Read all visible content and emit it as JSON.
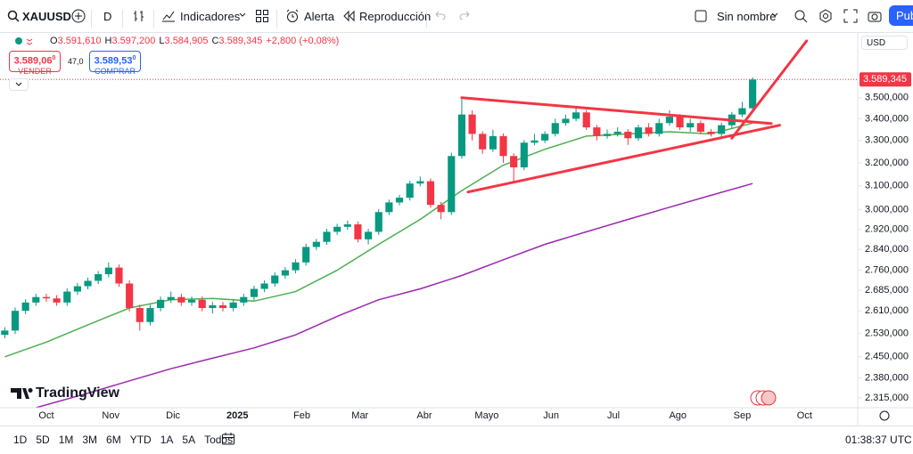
{
  "toolbar": {
    "symbol": "XAUUSD",
    "interval": "D",
    "indicators": "Indicadores",
    "alert": "Alerta",
    "replay": "Reproducción",
    "layout": "Sin nombre",
    "publish": "Pub"
  },
  "legend": {
    "items": [
      {
        "key": "O",
        "value": "3.591,610"
      },
      {
        "key": "H",
        "value": "3.597,200"
      },
      {
        "key": "L",
        "value": "3.584,905"
      },
      {
        "key": "C",
        "value": "3.589,345"
      }
    ],
    "change": "+2,800 (+0,08%)"
  },
  "sell": {
    "price": "3.589,06",
    "sup": "0",
    "label": "VENDER"
  },
  "spread": "47,0",
  "buy": {
    "price": "3.589,53",
    "sup": "0",
    "label": "COMPRAR"
  },
  "currency": "USD",
  "watermark": "TradingView",
  "ranges": [
    "1D",
    "5D",
    "1M",
    "3M",
    "6M",
    "YTD",
    "1A",
    "5A",
    "Todos"
  ],
  "clock": "01:38:37 UTC",
  "chart_data": {
    "type": "candlestick",
    "log_scale": true,
    "grid": false,
    "up_color": "#089981",
    "down_color": "#f23645",
    "x": [
      -20,
      -15,
      -10,
      -5,
      0,
      5,
      10,
      15,
      20,
      25,
      30,
      35,
      40,
      45,
      50,
      55,
      60,
      65,
      70,
      75,
      80,
      85,
      90,
      95,
      100,
      105,
      110,
      115,
      120,
      125,
      130,
      135,
      140,
      145,
      150,
      155,
      160,
      165,
      170,
      175,
      180,
      185,
      190,
      195,
      200,
      205,
      210,
      215,
      220,
      225,
      230,
      235,
      240,
      245,
      250,
      255,
      260,
      265,
      270,
      275,
      280,
      285,
      290,
      295,
      300,
      305,
      310,
      315,
      320,
      325,
      330,
      335,
      340
    ],
    "open": [
      2525,
      2540,
      2610,
      2640,
      2660,
      2655,
      2640,
      2680,
      2700,
      2720,
      2745,
      2770,
      2710,
      2620,
      2570,
      2620,
      2650,
      2660,
      2640,
      2650,
      2620,
      2630,
      2620,
      2640,
      2660,
      2690,
      2710,
      2740,
      2760,
      2790,
      2850,
      2870,
      2910,
      2930,
      2940,
      2880,
      2910,
      2990,
      3030,
      3050,
      3110,
      3120,
      3020,
      2990,
      3230,
      3420,
      3330,
      3260,
      3320,
      3230,
      3180,
      3290,
      3300,
      3330,
      3380,
      3400,
      3430,
      3360,
      3320,
      3330,
      3340,
      3310,
      3360,
      3330,
      3380,
      3410,
      3360,
      3380,
      3340,
      3330,
      3370,
      3420,
      3450
    ],
    "high": [
      2552,
      2622,
      2652,
      2672,
      2672,
      2667,
      2692,
      2712,
      2732,
      2757,
      2790,
      2782,
      2722,
      2632,
      2632,
      2662,
      2680,
      2672,
      2662,
      2662,
      2642,
      2642,
      2652,
      2672,
      2702,
      2722,
      2752,
      2772,
      2802,
      2862,
      2882,
      2922,
      2942,
      2955,
      2952,
      2922,
      3002,
      3042,
      3062,
      3122,
      3140,
      3132,
      3032,
      3245,
      3500,
      3440,
      3342,
      3350,
      3332,
      3242,
      3302,
      3330,
      3342,
      3400,
      3420,
      3452,
      3442,
      3372,
      3350,
      3360,
      3352,
      3372,
      3380,
      3400,
      3440,
      3422,
      3400,
      3392,
      3352,
      3382,
      3432,
      3480,
      3600
    ],
    "low": [
      2513,
      2528,
      2598,
      2628,
      2643,
      2628,
      2628,
      2668,
      2688,
      2708,
      2733,
      2698,
      2608,
      2540,
      2558,
      2608,
      2638,
      2628,
      2628,
      2608,
      2600,
      2608,
      2608,
      2628,
      2648,
      2678,
      2698,
      2728,
      2748,
      2778,
      2838,
      2858,
      2898,
      2918,
      2868,
      2860,
      2898,
      2978,
      3018,
      3038,
      3098,
      3008,
      2960,
      2978,
      3218,
      3300,
      3240,
      3248,
      3200,
      3120,
      3168,
      3278,
      3288,
      3318,
      3368,
      3388,
      3348,
      3300,
      3308,
      3318,
      3280,
      3298,
      3318,
      3318,
      3368,
      3348,
      3340,
      3328,
      3318,
      3318,
      3358,
      3408,
      3440
    ],
    "close": [
      2540,
      2610,
      2640,
      2660,
      2655,
      2640,
      2680,
      2700,
      2720,
      2745,
      2770,
      2710,
      2620,
      2570,
      2620,
      2650,
      2660,
      2640,
      2650,
      2620,
      2630,
      2620,
      2640,
      2660,
      2690,
      2710,
      2740,
      2760,
      2790,
      2850,
      2870,
      2910,
      2930,
      2940,
      2880,
      2910,
      2990,
      3030,
      3050,
      3110,
      3120,
      3020,
      2990,
      3230,
      3420,
      3330,
      3260,
      3320,
      3230,
      3180,
      3290,
      3300,
      3330,
      3380,
      3400,
      3430,
      3360,
      3320,
      3330,
      3340,
      3310,
      3360,
      3330,
      3380,
      3410,
      3360,
      3380,
      3340,
      3330,
      3370,
      3420,
      3450,
      3589
    ],
    "overlays": [
      {
        "color": "#4caf50",
        "x": [
          -20,
          0,
          20,
          40,
          60,
          80,
          100,
          120,
          140,
          160,
          180,
          200,
          220,
          240,
          260,
          280,
          300,
          320,
          340
        ],
        "values": [
          2450,
          2500,
          2560,
          2620,
          2650,
          2655,
          2645,
          2680,
          2760,
          2860,
          2960,
          3080,
          3190,
          3260,
          3320,
          3330,
          3340,
          3330,
          3380
        ]
      },
      {
        "color": "#9c27b0",
        "x": [
          -5,
          20,
          40,
          60,
          80,
          100,
          120,
          140,
          160,
          180,
          200,
          220,
          240,
          260,
          280,
          300,
          320,
          340
        ],
        "values": [
          2284,
          2330,
          2370,
          2410,
          2445,
          2480,
          2525,
          2590,
          2650,
          2690,
          2740,
          2800,
          2860,
          2910,
          2960,
          3010,
          3060,
          3110
        ]
      }
    ],
    "drawings": [
      {
        "color": "#f23645",
        "x": [
          200,
          349
        ],
        "values": [
          3500,
          3378
        ]
      },
      {
        "color": "#f23645",
        "x": [
          203,
          353
        ],
        "values": [
          3074,
          3370
        ]
      },
      {
        "color": "#f23645",
        "x": [
          330,
          366
        ],
        "values": [
          3310,
          3785
        ]
      }
    ],
    "last_price": {
      "value": 3589.345,
      "label": "3.589,345"
    },
    "xlim": [
      -22.3,
      390.6
    ],
    "xticks": [
      {
        "value": 0,
        "label": "Oct"
      },
      {
        "value": 31,
        "label": "Nov"
      },
      {
        "value": 61,
        "label": "Dic"
      },
      {
        "value": 92,
        "label": "2025"
      },
      {
        "value": 123,
        "label": "Feb"
      },
      {
        "value": 151,
        "label": "Mar"
      },
      {
        "value": 182,
        "label": "Abr"
      },
      {
        "value": 212,
        "label": "Mayo"
      },
      {
        "value": 243,
        "label": "Jun"
      },
      {
        "value": 273,
        "label": "Jul"
      },
      {
        "value": 304,
        "label": "Ago"
      },
      {
        "value": 335,
        "label": "Sep"
      },
      {
        "value": 365,
        "label": "Oct"
      }
    ],
    "ylim": [
      2284,
      3822
    ],
    "yticks": [
      {
        "value": 2315,
        "label": "2.315,000"
      },
      {
        "value": 2380,
        "label": "2.380,000"
      },
      {
        "value": 2450,
        "label": "2.450,000"
      },
      {
        "value": 2530,
        "label": "2.530,000"
      },
      {
        "value": 2610,
        "label": "2.610,000"
      },
      {
        "value": 2685,
        "label": "2.685,000"
      },
      {
        "value": 2760,
        "label": "2.760,000"
      },
      {
        "value": 2840,
        "label": "2.840,000"
      },
      {
        "value": 2920,
        "label": "2.920,000"
      },
      {
        "value": 3000,
        "label": "3.000,000"
      },
      {
        "value": 3100,
        "label": "3.100,000"
      },
      {
        "value": 3200,
        "label": "3.200,000"
      },
      {
        "value": 3300,
        "label": "3.300,000"
      },
      {
        "value": 3400,
        "label": "3.400,000"
      },
      {
        "value": 3500,
        "label": "3.500,000"
      }
    ]
  }
}
